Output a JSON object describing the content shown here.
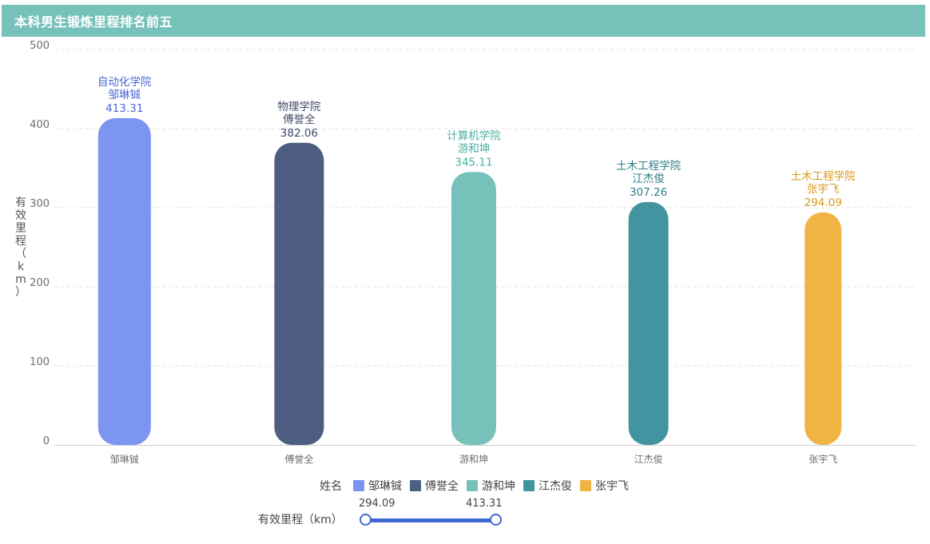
{
  "header": {
    "title": "本科男生锻炼里程排名前五"
  },
  "chart_data": {
    "type": "bar",
    "ylabel": "有效里程（km）",
    "ylim": [
      0,
      500
    ],
    "yticks": [
      0,
      100,
      200,
      300,
      400,
      500
    ],
    "grid": true,
    "categories": [
      "邹琳铖",
      "傅誉全",
      "游和坤",
      "江杰俊",
      "张宇飞"
    ],
    "values": [
      413.31,
      382.06,
      345.11,
      307.26,
      294.09
    ],
    "colleges": [
      "自动化学院",
      "物理学院",
      "计算机学院",
      "土木工程学院",
      "土木工程学院"
    ],
    "colors": [
      "#7b95f0",
      "#4e5e82",
      "#76c1b9",
      "#4295a0",
      "#f0b445"
    ],
    "label_colors": [
      "#4a67d4",
      "#3e4a66",
      "#4ab0a3",
      "#2f7d88",
      "#d99a1f"
    ],
    "legend": {
      "title": "姓名",
      "placement": "bottom-center",
      "items": [
        "邹琳铖",
        "傅誉全",
        "游和坤",
        "江杰俊",
        "张宇飞"
      ]
    }
  },
  "range_filter": {
    "title": "有效里程（km）",
    "min_label": "294.09",
    "max_label": "413.31",
    "color": "#3f68d6"
  }
}
